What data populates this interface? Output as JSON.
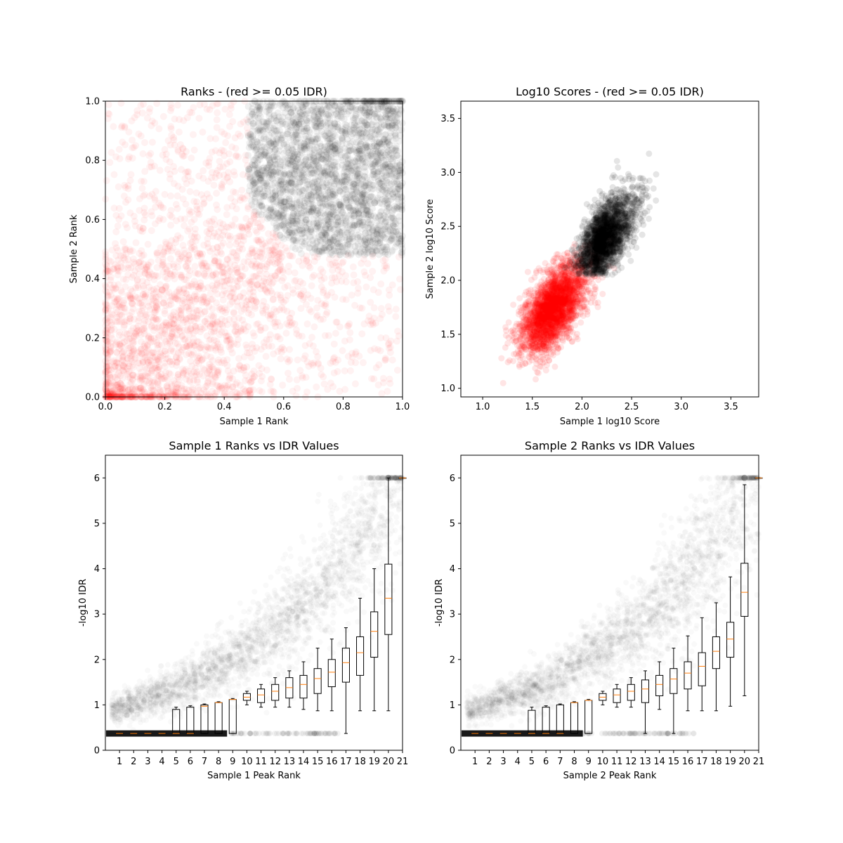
{
  "chart_data": [
    {
      "id": "p1",
      "type": "scatter",
      "title": "Ranks - (red >= 0.05 IDR)",
      "xlabel": "Sample 1 Rank",
      "ylabel": "Sample 2 Rank",
      "xlim": [
        0,
        1
      ],
      "ylim": [
        0,
        1
      ],
      "xticks": [
        0.0,
        0.2,
        0.4,
        0.6,
        0.8,
        1.0
      ],
      "yticks": [
        0.0,
        0.2,
        0.4,
        0.6,
        0.8,
        1.0
      ],
      "tick_labels_x": [
        "0.0",
        "0.2",
        "0.4",
        "0.6",
        "0.8",
        "1.0"
      ],
      "tick_labels_y": [
        "0.0",
        "0.2",
        "0.4",
        "0.6",
        "0.8",
        "1.0"
      ],
      "series": [
        {
          "color": "#ff0000",
          "description_region": "lower-left, values below roughly 0.5 combined rank"
        },
        {
          "color": "#000000",
          "description_region": "upper-right, both ranks above roughly 0.5"
        }
      ],
      "grid": false
    },
    {
      "id": "p2",
      "type": "scatter",
      "title": "Log10 Scores - (red >= 0.05 IDR)",
      "xlabel": "Sample 1 log10 Score",
      "ylabel": "Sample 2 log10 Score",
      "xlim": [
        0.78,
        3.78
      ],
      "ylim": [
        0.92,
        3.66
      ],
      "xticks": [
        1.0,
        1.5,
        2.0,
        2.5,
        3.0,
        3.5
      ],
      "yticks": [
        1.0,
        1.5,
        2.0,
        2.5,
        3.0,
        3.5
      ],
      "tick_labels_x": [
        "1.0",
        "1.5",
        "2.0",
        "2.5",
        "3.0",
        "3.5"
      ],
      "tick_labels_y": [
        "1.0",
        "1.5",
        "2.0",
        "2.5",
        "3.0",
        "3.5"
      ],
      "series": [
        {
          "color": "#ff0000",
          "center": [
            1.7,
            1.75
          ]
        },
        {
          "color": "#000000",
          "center": [
            2.15,
            2.4
          ]
        }
      ],
      "grid": false
    },
    {
      "id": "p3",
      "type": "box",
      "title": "Sample 1 Ranks vs IDR Values",
      "xlabel": "Sample 1 Peak Rank",
      "ylabel": "-log10 IDR",
      "xlim": [
        0,
        21
      ],
      "ylim": [
        0,
        6.5
      ],
      "yticks": [
        0,
        1,
        2,
        3,
        4,
        5,
        6
      ],
      "tick_labels_y": [
        "0",
        "1",
        "2",
        "3",
        "4",
        "5",
        "6"
      ],
      "categories": [
        "1",
        "2",
        "3",
        "4",
        "5",
        "6",
        "7",
        "8",
        "9",
        "10",
        "11",
        "12",
        "13",
        "14",
        "15",
        "16",
        "17",
        "18",
        "19",
        "20",
        "21"
      ],
      "boxes": [
        {
          "wl": 0.37,
          "q1": 0.37,
          "med": 0.37,
          "q3": 0.37,
          "wh": 0.37
        },
        {
          "wl": 0.37,
          "q1": 0.37,
          "med": 0.37,
          "q3": 0.37,
          "wh": 0.37
        },
        {
          "wl": 0.37,
          "q1": 0.37,
          "med": 0.37,
          "q3": 0.37,
          "wh": 0.37
        },
        {
          "wl": 0.37,
          "q1": 0.37,
          "med": 0.37,
          "q3": 0.37,
          "wh": 0.37
        },
        {
          "wl": 0.37,
          "q1": 0.37,
          "med": 0.37,
          "q3": 0.9,
          "wh": 0.95
        },
        {
          "wl": 0.37,
          "q1": 0.37,
          "med": 0.37,
          "q3": 0.95,
          "wh": 0.98
        },
        {
          "wl": 0.37,
          "q1": 0.37,
          "med": 0.97,
          "q3": 1.0,
          "wh": 1.02
        },
        {
          "wl": 0.37,
          "q1": 0.37,
          "med": 1.05,
          "q3": 1.05,
          "wh": 1.07
        },
        {
          "wl": 0.37,
          "q1": 0.37,
          "med": 1.12,
          "q3": 1.12,
          "wh": 1.14
        },
        {
          "wl": 1.0,
          "q1": 1.1,
          "med": 1.17,
          "q3": 1.25,
          "wh": 1.3
        },
        {
          "wl": 0.95,
          "q1": 1.05,
          "med": 1.22,
          "q3": 1.35,
          "wh": 1.45
        },
        {
          "wl": 0.95,
          "q1": 1.1,
          "med": 1.3,
          "q3": 1.45,
          "wh": 1.6
        },
        {
          "wl": 0.95,
          "q1": 1.15,
          "med": 1.38,
          "q3": 1.6,
          "wh": 1.75
        },
        {
          "wl": 0.9,
          "q1": 1.15,
          "med": 1.45,
          "q3": 1.65,
          "wh": 1.95
        },
        {
          "wl": 0.87,
          "q1": 1.25,
          "med": 1.58,
          "q3": 1.8,
          "wh": 2.25
        },
        {
          "wl": 0.87,
          "q1": 1.4,
          "med": 1.72,
          "q3": 2.0,
          "wh": 2.45
        },
        {
          "wl": 0.37,
          "q1": 1.5,
          "med": 1.93,
          "q3": 2.25,
          "wh": 2.7
        },
        {
          "wl": 0.87,
          "q1": 1.65,
          "med": 2.15,
          "q3": 2.5,
          "wh": 3.35
        },
        {
          "wl": 0.87,
          "q1": 2.05,
          "med": 2.62,
          "q3": 3.05,
          "wh": 4.0
        },
        {
          "wl": 0.87,
          "q1": 2.55,
          "med": 3.35,
          "q3": 4.1,
          "wh": 6.0
        },
        {
          "wl": 6.0,
          "q1": 6.0,
          "med": 6.0,
          "q3": 6.0,
          "wh": 6.0
        }
      ],
      "grid": false
    },
    {
      "id": "p4",
      "type": "box",
      "title": "Sample 2 Ranks vs IDR Values",
      "xlabel": "Sample 2 Peak Rank",
      "ylabel": "-log10 IDR",
      "xlim": [
        0,
        21
      ],
      "ylim": [
        0,
        6.5
      ],
      "yticks": [
        0,
        1,
        2,
        3,
        4,
        5,
        6
      ],
      "tick_labels_y": [
        "0",
        "1",
        "2",
        "3",
        "4",
        "5",
        "6"
      ],
      "categories": [
        "1",
        "2",
        "3",
        "4",
        "5",
        "6",
        "7",
        "8",
        "9",
        "10",
        "11",
        "12",
        "13",
        "14",
        "15",
        "16",
        "17",
        "18",
        "19",
        "20",
        "21"
      ],
      "boxes": [
        {
          "wl": 0.37,
          "q1": 0.37,
          "med": 0.37,
          "q3": 0.37,
          "wh": 0.37
        },
        {
          "wl": 0.37,
          "q1": 0.37,
          "med": 0.37,
          "q3": 0.37,
          "wh": 0.37
        },
        {
          "wl": 0.37,
          "q1": 0.37,
          "med": 0.37,
          "q3": 0.37,
          "wh": 0.37
        },
        {
          "wl": 0.37,
          "q1": 0.37,
          "med": 0.37,
          "q3": 0.37,
          "wh": 0.37
        },
        {
          "wl": 0.37,
          "q1": 0.37,
          "med": 0.37,
          "q3": 0.88,
          "wh": 0.95
        },
        {
          "wl": 0.37,
          "q1": 0.37,
          "med": 0.37,
          "q3": 0.95,
          "wh": 0.98
        },
        {
          "wl": 0.37,
          "q1": 0.37,
          "med": 0.37,
          "q3": 1.0,
          "wh": 1.02
        },
        {
          "wl": 0.37,
          "q1": 0.37,
          "med": 1.05,
          "q3": 1.05,
          "wh": 1.07
        },
        {
          "wl": 0.37,
          "q1": 0.37,
          "med": 1.1,
          "q3": 1.1,
          "wh": 1.12
        },
        {
          "wl": 1.0,
          "q1": 1.1,
          "med": 1.17,
          "q3": 1.25,
          "wh": 1.3
        },
        {
          "wl": 0.95,
          "q1": 1.05,
          "med": 1.22,
          "q3": 1.35,
          "wh": 1.45
        },
        {
          "wl": 0.95,
          "q1": 1.1,
          "med": 1.3,
          "q3": 1.45,
          "wh": 1.6
        },
        {
          "wl": 0.37,
          "q1": 1.05,
          "med": 1.35,
          "q3": 1.55,
          "wh": 1.75
        },
        {
          "wl": 0.9,
          "q1": 1.2,
          "med": 1.45,
          "q3": 1.65,
          "wh": 1.95
        },
        {
          "wl": 0.37,
          "q1": 1.25,
          "med": 1.57,
          "q3": 1.8,
          "wh": 2.25
        },
        {
          "wl": 0.87,
          "q1": 1.35,
          "med": 1.7,
          "q3": 1.95,
          "wh": 2.52
        },
        {
          "wl": 0.87,
          "q1": 1.42,
          "med": 1.85,
          "q3": 2.15,
          "wh": 2.92
        },
        {
          "wl": 0.87,
          "q1": 1.8,
          "med": 2.18,
          "q3": 2.5,
          "wh": 3.25
        },
        {
          "wl": 0.97,
          "q1": 2.05,
          "med": 2.45,
          "q3": 2.82,
          "wh": 3.82
        },
        {
          "wl": 1.2,
          "q1": 2.95,
          "med": 3.48,
          "q3": 4.12,
          "wh": 5.85
        },
        {
          "wl": 6.0,
          "q1": 6.0,
          "med": 6.0,
          "q3": 6.0,
          "wh": 6.0
        }
      ],
      "grid": false
    }
  ]
}
